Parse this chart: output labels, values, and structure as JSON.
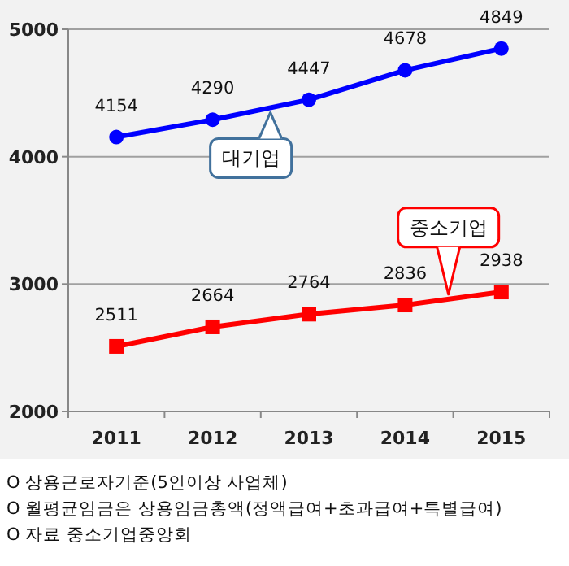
{
  "chart_data": {
    "type": "line",
    "categories": [
      "2011",
      "2012",
      "2013",
      "2014",
      "2015"
    ],
    "series": [
      {
        "name": "대기업",
        "color": "#0000ff",
        "marker": "circle",
        "values": [
          4154,
          4290,
          4447,
          4678,
          4849
        ]
      },
      {
        "name": "중소기업",
        "color": "#ff0000",
        "marker": "square",
        "values": [
          2511,
          2664,
          2764,
          2836,
          2938
        ]
      }
    ],
    "ylim": [
      2000,
      5000
    ],
    "yticks": [
      2000,
      3000,
      4000,
      5000
    ],
    "grid": "y",
    "data_labels": true,
    "annotations": [
      "O 상용근로자기준(5인이상 사업체)",
      "O 월평균임금은 상용임금총액(정액급여+초과급여+특별급여)",
      "O 자료 중소기업중앙회"
    ]
  }
}
